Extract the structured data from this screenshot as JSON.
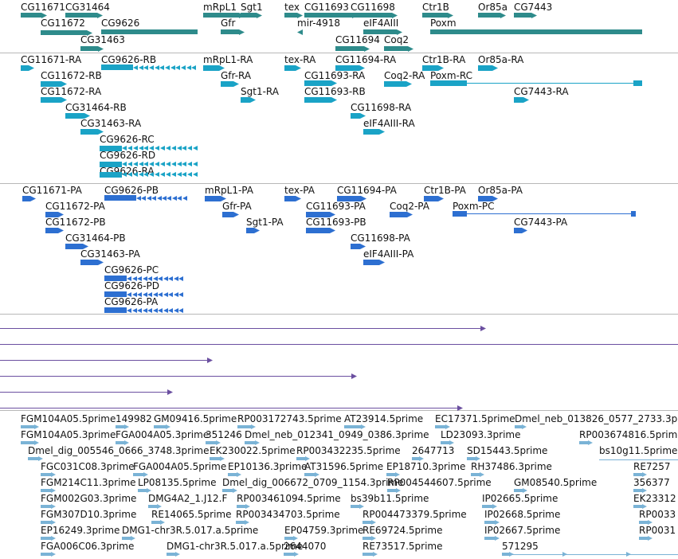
{
  "colors": {
    "gene": "#2e8b8b",
    "transcript": "#1aa3c6",
    "protein": "#2d6fd1",
    "alignment": "#6b4fa0",
    "est": "#7ab3d6",
    "divider": "#b8b8b8"
  },
  "tracks": {
    "genes": {
      "labels": [
        "CG11671",
        "CG31464",
        "mRpL1",
        "Sgt1",
        "tex",
        "CG11693",
        "CG11698",
        "Ctr1B",
        "Or85a",
        "CG7443",
        "CG11672",
        "CG9626",
        "Gfr",
        "mir-4918",
        "eIF4AIII",
        "Poxm",
        "CG31463",
        "CG11694",
        "Coq2"
      ]
    },
    "transcripts": {
      "labels": [
        "CG11671-RA",
        "CG9626-RB",
        "mRpL1-RA",
        "tex-RA",
        "CG11694-RA",
        "Ctr1B-RA",
        "Or85a-RA",
        "CG11672-RB",
        "Gfr-RA",
        "CG11693-RA",
        "Coq2-RA",
        "Poxm-RC",
        "CG11672-RA",
        "Sgt1-RA",
        "CG11693-RB",
        "CG7443-RA",
        "CG31464-RB",
        "CG11698-RA",
        "CG31463-RA",
        "eIF4AIII-RA",
        "CG9626-RC",
        "CG9626-RD",
        "CG9626-RA"
      ]
    },
    "proteins": {
      "labels": [
        "CG11671-PA",
        "CG9626-PB",
        "mRpL1-PA",
        "tex-PA",
        "CG11694-PA",
        "Ctr1B-PA",
        "Or85a-PA",
        "CG11672-PA",
        "Gfr-PA",
        "CG11693-PA",
        "Coq2-PA",
        "Poxm-PC",
        "CG11672-PB",
        "Sgt1-PA",
        "CG11693-PB",
        "CG7443-PA",
        "CG31464-PB",
        "CG11698-PA",
        "CG31463-PA",
        "eIF4AIII-PA",
        "CG9626-PC",
        "CG9626-PD",
        "CG9626-PA"
      ]
    },
    "ests": {
      "labels": [
        "FGM104A05.5prime",
        "149982",
        "GM09416.5prime",
        "RP003172743.5prime",
        "AT23914.5prime",
        "EC17371.5prime",
        "Dmel_neb_013826_0577_2733.3p",
        "FGM104A05.3prime",
        "FGA004A05.3prime",
        "351246",
        "Dmel_neb_012341_0949_0386.3prime",
        "LD23093.3prime",
        "RP003674816.5prime",
        "Dmel_dig_005546_0666_3748.3prime",
        "EK230022.5prime",
        "RP003432235.5prime",
        "2647713",
        "SD15443.5prime",
        "bs10g11.5prime",
        "FGC031C08.3prime",
        "FGA004A05.5prime",
        "EP10136.3prime",
        "AT31596.5prime",
        "EP18710.3prime",
        "RH37486.3prime",
        "RE7257",
        "FGM214C11.3prime",
        "LP08135.5prime",
        "Dmel_dig_006672_0709_1154.3prime",
        "RP004544607.5prime",
        "GM08540.5prime",
        "356377",
        "FGM002G03.3prime",
        "DMG4A2_1.J12.F",
        "RP003461094.5prime",
        "bs39b11.5prime",
        "IP02665.5prime",
        "EK23312",
        "FGM307D10.3prime",
        "RE14065.5prime",
        "RP003434703.5prime",
        "RP004473379.5prime",
        "IP02668.5prime",
        "RP0033",
        "EP16249.3prime",
        "DMG1-chr3R.5.017.a.5prime",
        "EP04759.3prime",
        "RE69724.5prime",
        "IP02667.5prime",
        "RP0031",
        "FGA006C06.3prime",
        "DMG1-chr3R.5.017.a.5prime",
        "2644070",
        "RE73517.5prime",
        "571295"
      ]
    }
  }
}
